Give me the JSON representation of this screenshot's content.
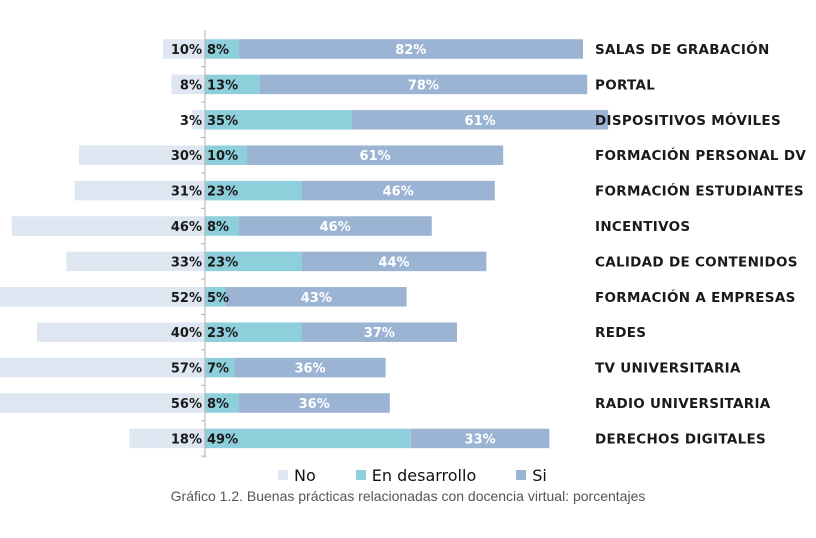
{
  "chart_data": {
    "type": "bar",
    "orientation": "horizontal-diverging",
    "categories": [
      "SALAS DE GRABACIÓN",
      "PORTAL",
      "DISPOSITIVOS MÓVILES",
      "FORMACIÓN PERSONAL DV",
      "FORMACIÓN ESTUDIANTES",
      "INCENTIVOS",
      "CALIDAD DE CONTENIDOS",
      "FORMACIÓN A EMPRESAS",
      "REDES",
      "TV UNIVERSITARIA",
      "RADIO UNIVERSITARIA",
      "DERECHOS DIGITALES"
    ],
    "series": [
      {
        "name": "No",
        "color": "#dde6f1",
        "direction": "left",
        "values": [
          10,
          8,
          3,
          30,
          31,
          46,
          33,
          52,
          40,
          57,
          56,
          18
        ],
        "labels": [
          "10%",
          "8%",
          "3%",
          "30%",
          "31%",
          "46%",
          "33%",
          "52%",
          "40%",
          "57%",
          "56%",
          "18%"
        ],
        "label_color": "#1a1a1a"
      },
      {
        "name": "En desarrollo",
        "color": "#8ecfdc",
        "direction": "right",
        "values": [
          8,
          13,
          35,
          10,
          23,
          8,
          23,
          5,
          23,
          7,
          8,
          49
        ],
        "labels": [
          "8%",
          "13%",
          "35%",
          "10%",
          "23%",
          "8%",
          "23%",
          "5%",
          "23%",
          "7%",
          "8%",
          "49%"
        ],
        "label_color": "#1a1a1a"
      },
      {
        "name": "Si",
        "color": "#9bb4d3",
        "direction": "right",
        "values": [
          82,
          78,
          61,
          61,
          46,
          46,
          44,
          43,
          37,
          36,
          36,
          33
        ],
        "labels": [
          "82%",
          "78%",
          "61%",
          "61%",
          "46%",
          "46%",
          "44%",
          "43%",
          "37%",
          "36%",
          "36%",
          "33%"
        ],
        "label_color": "#ffffff"
      }
    ],
    "legend": [
      "No",
      "En desarrollo",
      "Si"
    ],
    "legend_position": "bottom",
    "xlabel": "",
    "ylabel": "",
    "grid": false,
    "caption": "Gráfico 1.2. Buenas prácticas relacionadas con docencia virtual: porcentajes"
  }
}
